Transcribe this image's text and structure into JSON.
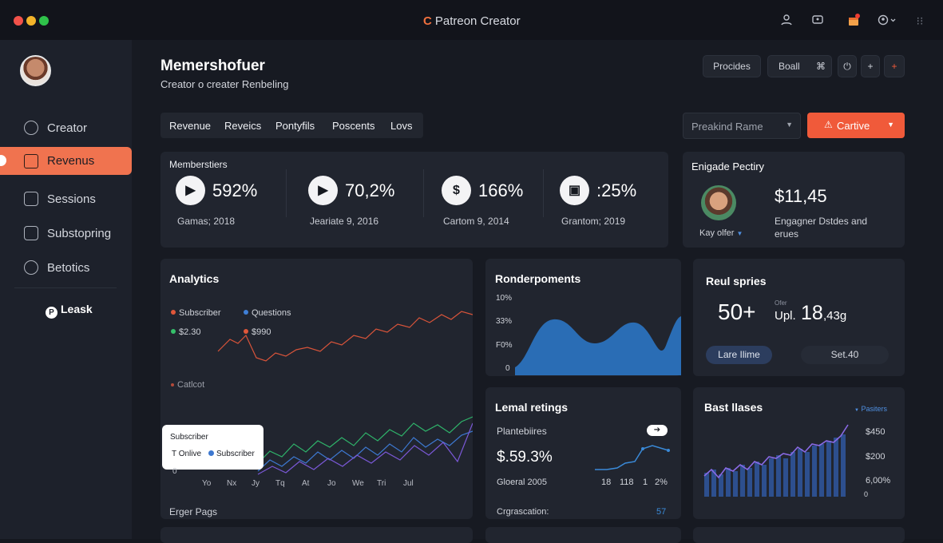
{
  "window": {
    "title": "Patreon Creator",
    "title_mark": "C"
  },
  "sidebar": {
    "items": [
      {
        "label": "Creator"
      },
      {
        "label": "Revenus"
      },
      {
        "label": "Sessions"
      },
      {
        "label": "Substopring"
      },
      {
        "label": "Betotics"
      }
    ],
    "footer_label": "Leask",
    "footer_logo": "P"
  },
  "header": {
    "title": "Memershofuer",
    "subtitle": "Creator o creater Renbeling",
    "buttons": {
      "procides": "Procides",
      "boall": "Boall"
    }
  },
  "tabs": [
    "Revenue",
    "Reveics",
    "Pontyfils",
    "Poscents",
    "Lovs"
  ],
  "filter": {
    "value": "Preakind Rame"
  },
  "cta": {
    "label": "Cartive"
  },
  "memberships": {
    "title": "Memberstiers",
    "stats": [
      {
        "value": "592%",
        "date": "Gamas; 2018",
        "icon": "play-icon"
      },
      {
        "value": "70,2%",
        "date": "Jeariate 9, 2016",
        "icon": "play-icon"
      },
      {
        "value": "166%",
        "date": "Cartom 9, 2014",
        "icon": "dollar-icon"
      },
      {
        "value": ":25%",
        "date": "Grantom; 2019",
        "icon": "bag-icon"
      }
    ]
  },
  "engage": {
    "title": "Enigade Pectiry",
    "amount": "$11,45",
    "desc_line1": "Engagner Dstdes and",
    "desc_line2": "erues",
    "user": "Kay olfer"
  },
  "analytics": {
    "title": "Analytics",
    "legend": [
      {
        "label": "Subscriber",
        "color": "#e0573a"
      },
      {
        "label": "Questions",
        "color": "#3f7fd6"
      },
      {
        "label": "$2.30",
        "color": "#35c06a"
      },
      {
        "label": "$990",
        "color": "#e0573a"
      }
    ],
    "annotation": "Catlcot",
    "tooltip": {
      "title": "Subscriber",
      "item1": "T Onlive",
      "item2": "Subscriber"
    },
    "zero_label": "0",
    "xlabels": [
      "Yo",
      "Nx",
      "Jy",
      "Tq",
      "At",
      "Jo",
      "We",
      "Tri",
      "Jul"
    ],
    "footer": "Erger Pags"
  },
  "render": {
    "title": "Ronderpoments",
    "ylabels": [
      "10%",
      "33%",
      "F0%",
      "0"
    ]
  },
  "reul": {
    "title": "Reul spries",
    "big": "50+",
    "small_label": "Ofer",
    "upl": "Upl.",
    "upl_value": "18",
    "upl_suffix": ",43g",
    "pill1": "Lare Ilime",
    "pill2": "Set.40"
  },
  "lemal": {
    "title": "Lemal retings",
    "sub": "Plantebiires",
    "value": "$.59.3%",
    "footer_left": "Gloeral 2005",
    "axis_labels": [
      "18",
      "118",
      "1",
      "2%"
    ],
    "foot": "Crgrascation:",
    "foot_value": "57"
  },
  "bast": {
    "title": "Bast llases",
    "legend": "Pasiters",
    "ylabels": [
      "$450",
      "$200",
      "6,00%",
      "0"
    ]
  },
  "colors": {
    "accent": "#f0734f",
    "cta": "#f05a3a",
    "blue": "#2a6db5"
  }
}
